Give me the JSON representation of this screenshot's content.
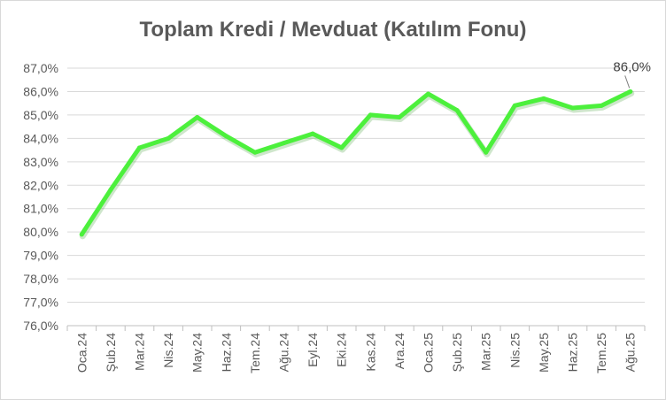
{
  "chart_data": {
    "type": "line",
    "title": "Toplam Kredi / Mevduat (Katılım Fonu)",
    "xlabel": "",
    "ylabel": "",
    "categories": [
      "Oca.24",
      "Şub.24",
      "Mar.24",
      "Nis.24",
      "May.24",
      "Haz.24",
      "Tem.24",
      "Ağu.24",
      "Eyl.24",
      "Eki.24",
      "Kas.24",
      "Ara.24",
      "Oca.25",
      "Şub.25",
      "Mar.25",
      "Nis.25",
      "May.25",
      "Haz.25",
      "Tem.25",
      "Ağu.25"
    ],
    "series": [
      {
        "values": [
          79.9,
          81.8,
          83.6,
          84.0,
          84.9,
          84.1,
          83.4,
          83.8,
          84.2,
          83.6,
          85.0,
          84.9,
          85.9,
          85.2,
          83.4,
          85.4,
          85.7,
          85.3,
          85.4,
          86.0
        ]
      }
    ],
    "ylim": [
      76,
      87
    ],
    "yticks": [
      "76,0%",
      "77,0%",
      "78,0%",
      "79,0%",
      "80,0%",
      "81,0%",
      "82,0%",
      "83,0%",
      "84,0%",
      "85,0%",
      "86,0%",
      "87,0%"
    ],
    "grid": true,
    "legend": "none",
    "line_color": "#4cf03c",
    "data_labels": [
      {
        "index": 19,
        "text": "86,0%"
      }
    ]
  }
}
